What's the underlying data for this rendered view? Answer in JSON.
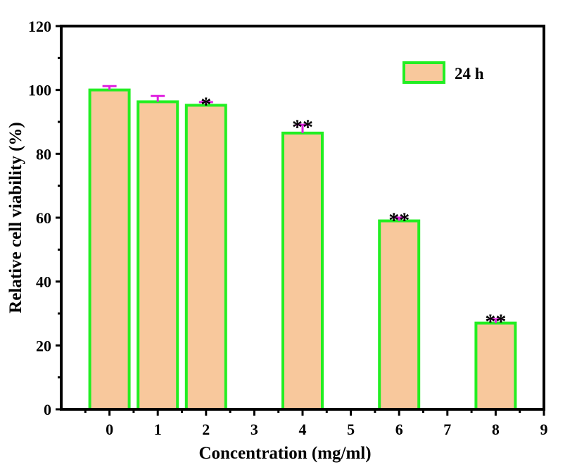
{
  "chart_data": {
    "type": "bar",
    "xlabel": "Concentration (mg/ml)",
    "ylabel": "Relative cell viability (%)",
    "xlim": [
      -1,
      9
    ],
    "ylim": [
      0,
      120
    ],
    "x_ticks": [
      0,
      1,
      2,
      3,
      4,
      5,
      6,
      7,
      8,
      9
    ],
    "y_ticks": [
      0,
      20,
      40,
      60,
      80,
      100,
      120
    ],
    "legend": {
      "label": "24 h",
      "position": "top-right"
    },
    "colors": {
      "bar_fill": "#f8c89c",
      "bar_edge": "#22ee22",
      "error_bar": "#e020e0",
      "axis": "#000000"
    },
    "series": [
      {
        "name": "24 h",
        "points": [
          {
            "x": 0,
            "value": 100,
            "error": 1.2,
            "significance": ""
          },
          {
            "x": 1,
            "value": 96.3,
            "error": 1.8,
            "significance": ""
          },
          {
            "x": 2,
            "value": 95.2,
            "error": 1.0,
            "significance": "*"
          },
          {
            "x": 4,
            "value": 86.5,
            "error": 2.6,
            "significance": "**"
          },
          {
            "x": 6,
            "value": 59,
            "error": 1.0,
            "significance": "**"
          },
          {
            "x": 8,
            "value": 27,
            "error": 1.2,
            "significance": "**"
          }
        ]
      }
    ]
  }
}
